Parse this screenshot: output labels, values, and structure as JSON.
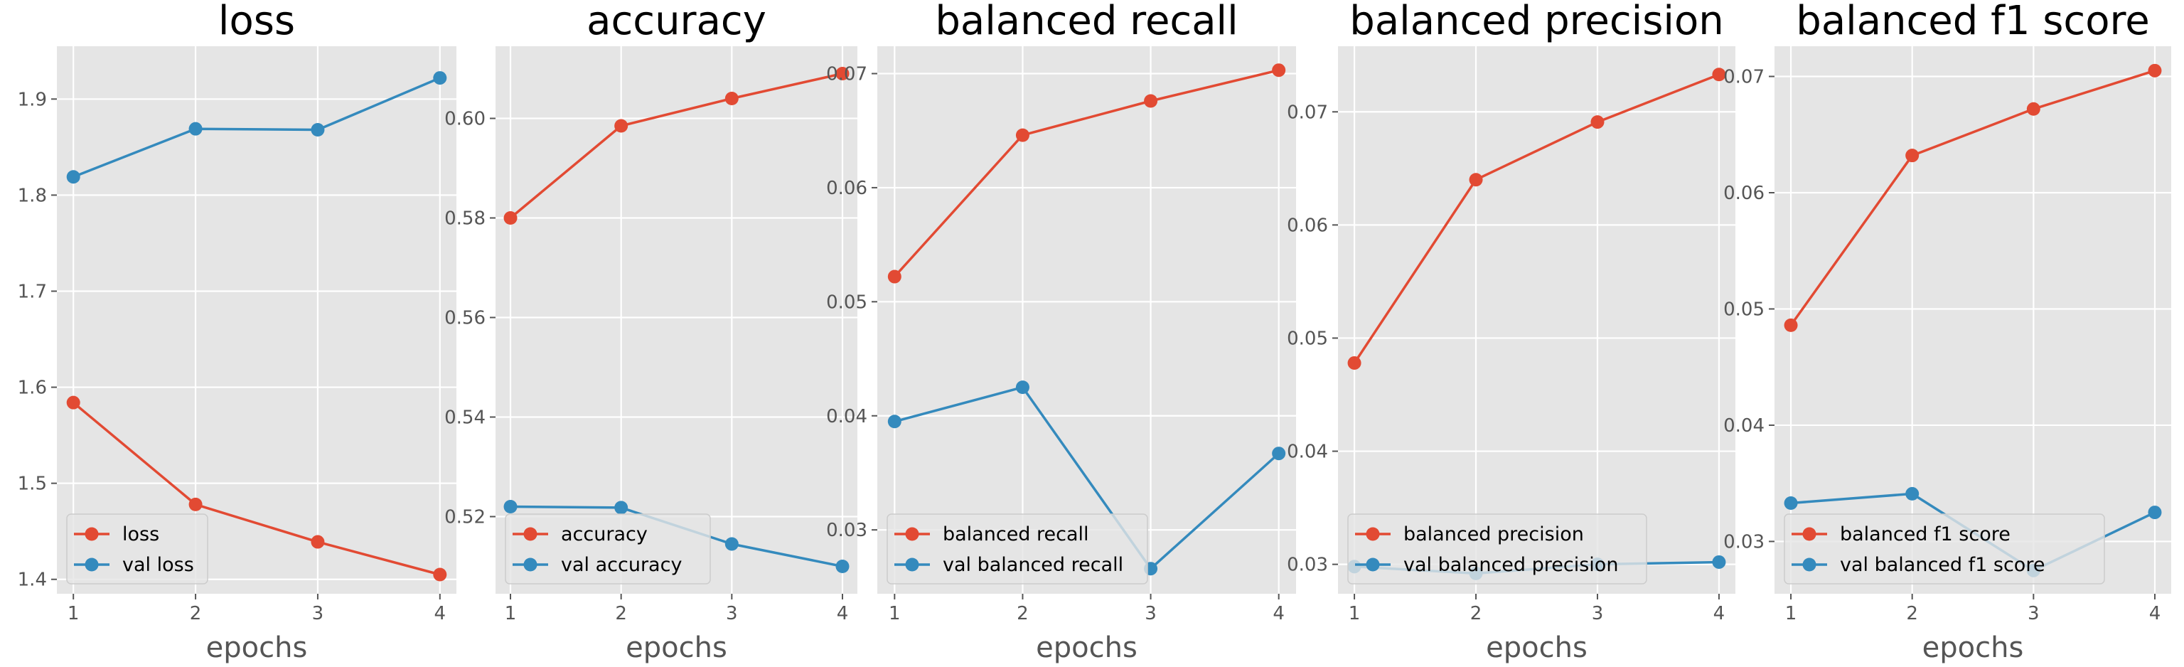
{
  "colors": {
    "train": "#E24A33",
    "val": "#348ABD",
    "panel_bg": "#E5E5E5",
    "grid": "#FFFFFF"
  },
  "chart_data": [
    {
      "type": "line",
      "title": "loss",
      "xlabel": "epochs",
      "x": [
        1,
        2,
        3,
        4
      ],
      "xticks": [
        "1",
        "2",
        "3",
        "4"
      ],
      "ylim": [
        1.385,
        1.955
      ],
      "yticks": [
        "1.4",
        "1.5",
        "1.6",
        "1.7",
        "1.8",
        "1.9"
      ],
      "ytick_values": [
        1.4,
        1.5,
        1.6,
        1.7,
        1.8,
        1.9
      ],
      "legend_position": "lower-left",
      "grid": true,
      "series": [
        {
          "name": "loss",
          "values": [
            1.584,
            1.478,
            1.439,
            1.405
          ]
        },
        {
          "name": "val loss",
          "values": [
            1.819,
            1.869,
            1.868,
            1.922
          ]
        }
      ]
    },
    {
      "type": "line",
      "title": "accuracy",
      "xlabel": "epochs",
      "x": [
        1,
        2,
        3,
        4
      ],
      "xticks": [
        "1",
        "2",
        "3",
        "4"
      ],
      "ylim": [
        0.5045,
        0.6145
      ],
      "yticks": [
        "0.52",
        "0.54",
        "0.56",
        "0.58",
        "0.60"
      ],
      "ytick_values": [
        0.52,
        0.54,
        0.56,
        0.58,
        0.6
      ],
      "legend_position": "lower-left",
      "grid": true,
      "series": [
        {
          "name": "accuracy",
          "values": [
            0.58,
            0.5985,
            0.604,
            0.609
          ]
        },
        {
          "name": "val accuracy",
          "values": [
            0.522,
            0.5218,
            0.5145,
            0.51
          ]
        }
      ]
    },
    {
      "type": "line",
      "title": "balanced recall",
      "xlabel": "epochs",
      "x": [
        1,
        2,
        3,
        4
      ],
      "xticks": [
        "1",
        "2",
        "3",
        "4"
      ],
      "ylim": [
        0.0244,
        0.0724
      ],
      "yticks": [
        "0.03",
        "0.04",
        "0.05",
        "0.06",
        "0.07"
      ],
      "ytick_values": [
        0.03,
        0.04,
        0.05,
        0.06,
        0.07
      ],
      "legend_position": "lower-left",
      "grid": true,
      "series": [
        {
          "name": "balanced recall",
          "values": [
            0.0522,
            0.0646,
            0.0676,
            0.0703
          ]
        },
        {
          "name": "val balanced recall",
          "values": [
            0.0395,
            0.0425,
            0.0266,
            0.0367
          ]
        }
      ]
    },
    {
      "type": "line",
      "title": "balanced precision",
      "xlabel": "epochs",
      "x": [
        1,
        2,
        3,
        4
      ],
      "xticks": [
        "1",
        "2",
        "3",
        "4"
      ],
      "ylim": [
        0.0274,
        0.0758
      ],
      "yticks": [
        "0.03",
        "0.04",
        "0.05",
        "0.06",
        "0.07"
      ],
      "ytick_values": [
        0.03,
        0.04,
        0.05,
        0.06,
        0.07
      ],
      "legend_position": "lower-left",
      "grid": true,
      "series": [
        {
          "name": "balanced precision",
          "values": [
            0.0478,
            0.064,
            0.0691,
            0.0733
          ]
        },
        {
          "name": "val balanced precision",
          "values": [
            0.0298,
            0.0292,
            0.03,
            0.0302
          ]
        }
      ]
    },
    {
      "type": "line",
      "title": "balanced f1 score",
      "xlabel": "epochs",
      "x": [
        1,
        2,
        3,
        4
      ],
      "xticks": [
        "1",
        "2",
        "3",
        "4"
      ],
      "ylim": [
        0.0255,
        0.0726
      ],
      "yticks": [
        "0.03",
        "0.04",
        "0.05",
        "0.06",
        "0.07"
      ],
      "ytick_values": [
        0.03,
        0.04,
        0.05,
        0.06,
        0.07
      ],
      "legend_position": "lower-left",
      "grid": true,
      "series": [
        {
          "name": "balanced f1 score",
          "values": [
            0.0486,
            0.0632,
            0.0672,
            0.0705
          ]
        },
        {
          "name": "val balanced f1 score",
          "values": [
            0.0333,
            0.0341,
            0.0275,
            0.0325
          ]
        }
      ]
    }
  ]
}
